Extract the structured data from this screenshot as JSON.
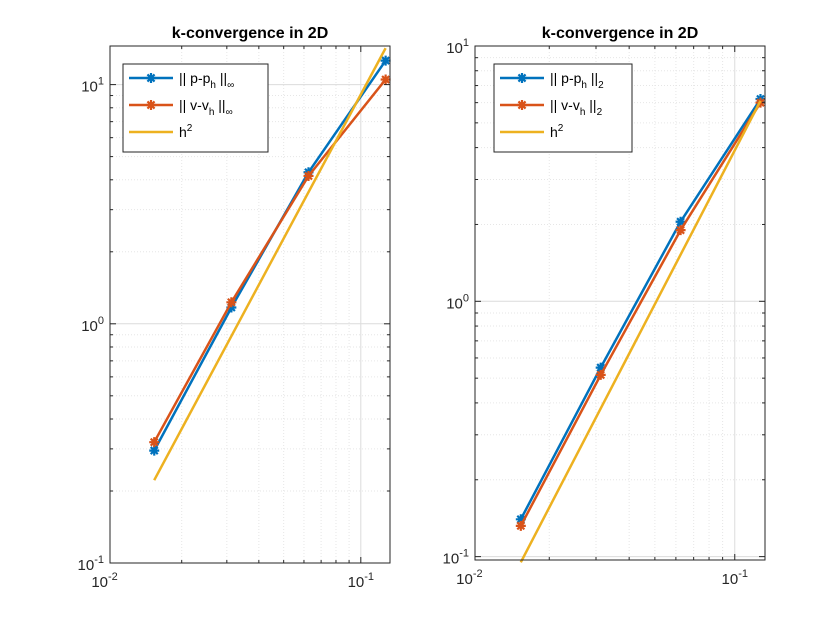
{
  "chart_data": [
    {
      "type": "line",
      "title": "k-convergence in 2D",
      "xscale": "log",
      "yscale": "log",
      "xlim": [
        0.0105,
        0.13
      ],
      "ylim": [
        0.1,
        14.5
      ],
      "grid": true,
      "legend_position": "top-left",
      "x_ticks": [
        {
          "base": "10",
          "exp": "-2"
        },
        {
          "base": "10",
          "exp": "-1"
        }
      ],
      "y_ticks": [
        {
          "base": "10",
          "exp": "-1"
        },
        {
          "base": "10",
          "exp": "0"
        },
        {
          "base": "10",
          "exp": "1"
        }
      ],
      "series": [
        {
          "name": "|| p-p_h ||_∞",
          "legend": {
            "a": "|| p-p",
            "sub1": "h",
            "b": " ||",
            "sub2": "∞"
          },
          "color": "#0072BD",
          "marker": "asterisk",
          "x": [
            0.015625,
            0.03125,
            0.0625,
            0.125
          ],
          "y": [
            0.295,
            1.17,
            4.3,
            12.6
          ]
        },
        {
          "name": "|| v-v_h ||_∞",
          "legend": {
            "a": "|| v-v",
            "sub1": "h",
            "b": " ||",
            "sub2": "∞"
          },
          "color": "#D95319",
          "marker": "asterisk",
          "x": [
            0.015625,
            0.03125,
            0.0625,
            0.125
          ],
          "y": [
            0.32,
            1.23,
            4.15,
            10.5
          ]
        },
        {
          "name": "h^2",
          "legend": {
            "a": "h",
            "sup": "2"
          },
          "color": "#EDB120",
          "marker": "none",
          "x": [
            0.015625,
            0.125
          ],
          "y": [
            0.222,
            14.2
          ]
        }
      ]
    },
    {
      "type": "line",
      "title": "k-convergence in 2D",
      "xscale": "log",
      "yscale": "log",
      "xlim": [
        0.0105,
        0.13
      ],
      "ylim": [
        0.097,
        10
      ],
      "grid": true,
      "legend_position": "top-left",
      "x_ticks": [
        {
          "base": "10",
          "exp": "-2"
        },
        {
          "base": "10",
          "exp": "-1"
        }
      ],
      "y_ticks": [
        {
          "base": "10",
          "exp": "-1"
        },
        {
          "base": "10",
          "exp": "0"
        },
        {
          "base": "10",
          "exp": "1"
        }
      ],
      "series": [
        {
          "name": "|| p-p_h ||_2",
          "legend": {
            "a": "|| p-p",
            "sub1": "h",
            "b": " ||",
            "sub2": "2"
          },
          "color": "#0072BD",
          "marker": "asterisk",
          "x": [
            0.015625,
            0.03125,
            0.0625,
            0.125
          ],
          "y": [
            0.14,
            0.55,
            2.05,
            6.2
          ]
        },
        {
          "name": "|| v-v_h ||_2",
          "legend": {
            "a": "|| v-v",
            "sub1": "h",
            "b": " ||",
            "sub2": "2"
          },
          "color": "#D95319",
          "marker": "asterisk",
          "x": [
            0.015625,
            0.03125,
            0.0625,
            0.125
          ],
          "y": [
            0.132,
            0.515,
            1.9,
            6.0
          ]
        },
        {
          "name": "h^2",
          "legend": {
            "a": "h",
            "sup": "2"
          },
          "color": "#EDB120",
          "marker": "none",
          "x": [
            0.015625,
            0.125
          ],
          "y": [
            0.095,
            6.1
          ]
        }
      ]
    }
  ]
}
